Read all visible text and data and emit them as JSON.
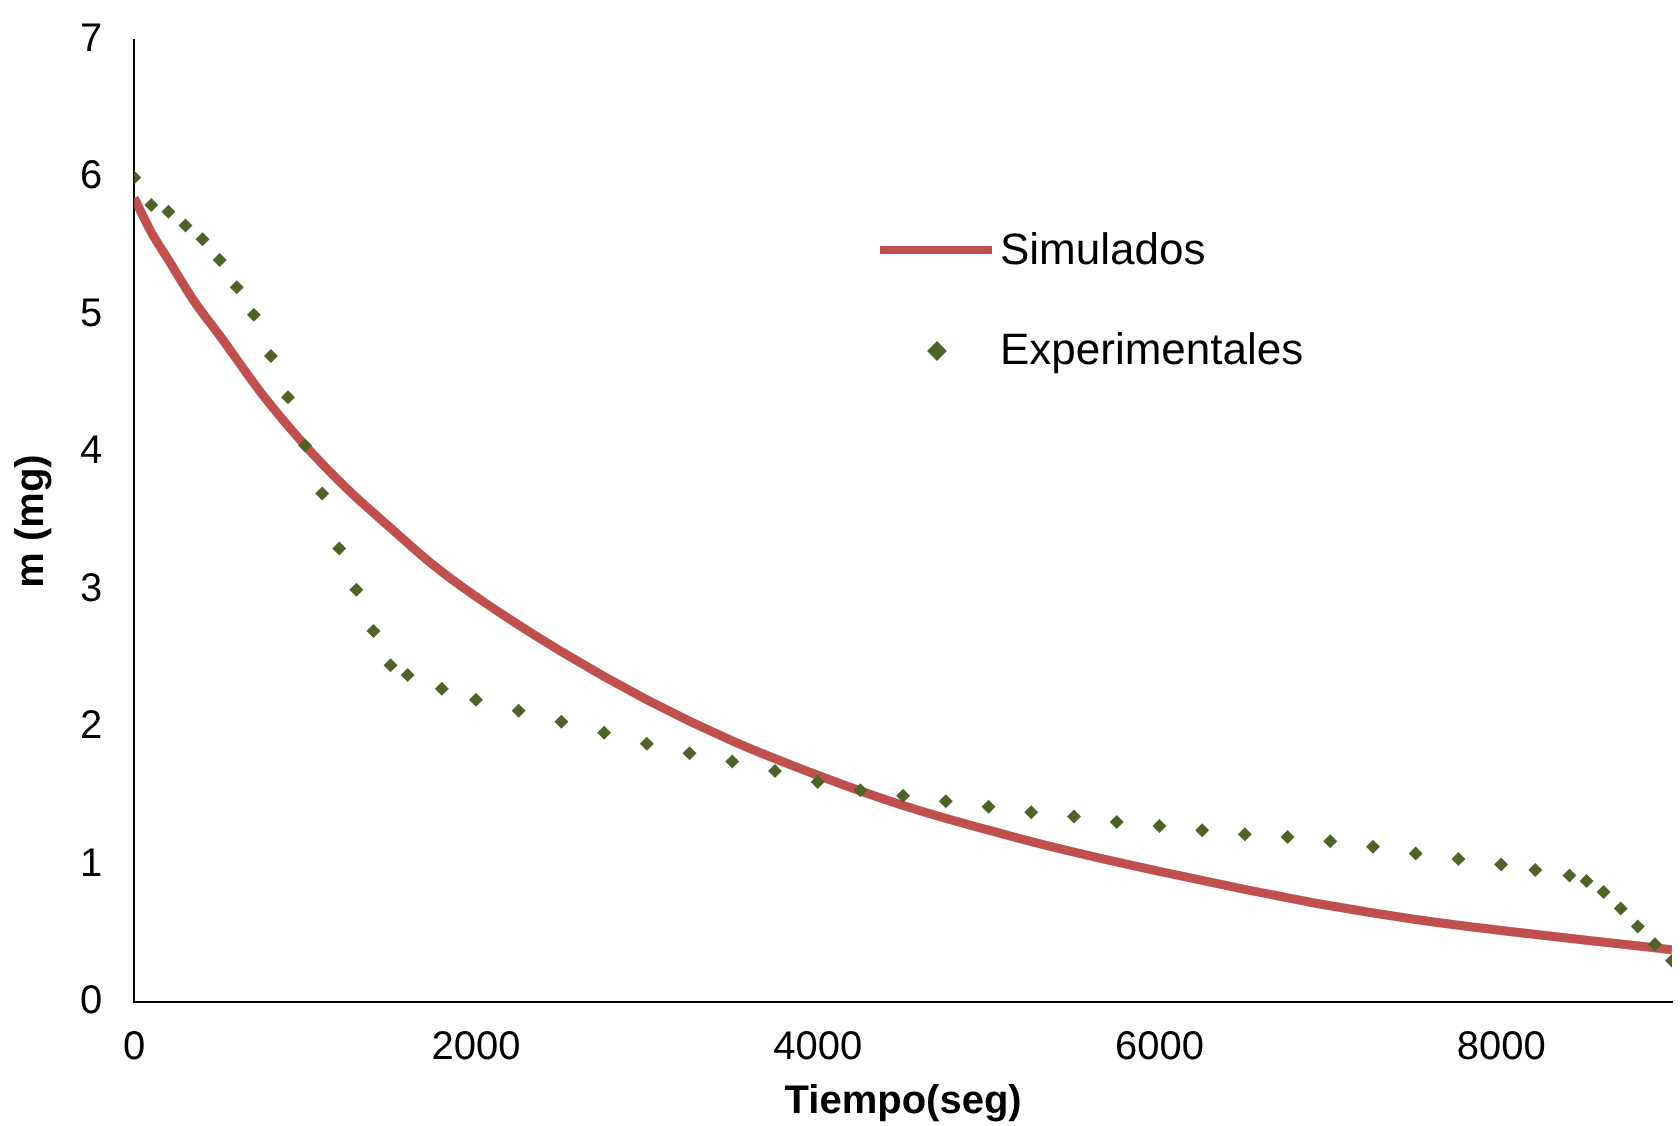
{
  "chart_data": {
    "type": "line",
    "xlabel": "Tiempo(seg)",
    "ylabel": "m (mg)",
    "xlim": [
      0,
      9000
    ],
    "ylim": [
      0,
      7
    ],
    "xticks": [
      0,
      2000,
      4000,
      6000,
      8000
    ],
    "yticks": [
      0,
      1,
      2,
      3,
      4,
      5,
      6,
      7
    ],
    "grid": false,
    "legend": "top right",
    "series": [
      {
        "name": "Simulados",
        "color": "#c0504d",
        "marker": "none",
        "line_style": "solid",
        "x": [
          0,
          100,
          200,
          350,
          500,
          750,
          1000,
          1250,
          1500,
          1750,
          2000,
          2500,
          3000,
          3500,
          4000,
          4500,
          5000,
          5500,
          6000,
          6500,
          7000,
          7500,
          8000,
          8500,
          9000
        ],
        "values": [
          5.85,
          5.6,
          5.4,
          5.1,
          4.85,
          4.42,
          4.05,
          3.73,
          3.45,
          3.18,
          2.95,
          2.55,
          2.2,
          1.9,
          1.65,
          1.43,
          1.25,
          1.09,
          0.95,
          0.82,
          0.7,
          0.6,
          0.52,
          0.45,
          0.38
        ]
      },
      {
        "name": "Experimentales",
        "type": "scatter",
        "color": "#4f6228",
        "marker": "diamond",
        "x": [
          0,
          100,
          200,
          300,
          400,
          500,
          600,
          700,
          800,
          900,
          1000,
          1100,
          1200,
          1300,
          1400,
          1500,
          1600,
          1800,
          2000,
          2250,
          2500,
          2750,
          3000,
          3250,
          3500,
          3750,
          4000,
          4250,
          4500,
          4750,
          5000,
          5250,
          5500,
          5750,
          6000,
          6250,
          6500,
          6750,
          7000,
          7250,
          7500,
          7750,
          8000,
          8200,
          8400,
          8500,
          8600,
          8700,
          8800,
          8900,
          9000
        ],
        "values": [
          6.0,
          5.8,
          5.75,
          5.65,
          5.55,
          5.4,
          5.2,
          5.0,
          4.7,
          4.4,
          4.05,
          3.7,
          3.3,
          3.0,
          2.7,
          2.45,
          2.38,
          2.28,
          2.2,
          2.12,
          2.04,
          1.96,
          1.88,
          1.81,
          1.75,
          1.68,
          1.6,
          1.54,
          1.5,
          1.46,
          1.42,
          1.38,
          1.35,
          1.31,
          1.28,
          1.25,
          1.22,
          1.2,
          1.17,
          1.13,
          1.08,
          1.04,
          1.0,
          0.96,
          0.92,
          0.88,
          0.8,
          0.68,
          0.55,
          0.42,
          0.3
        ]
      }
    ]
  }
}
